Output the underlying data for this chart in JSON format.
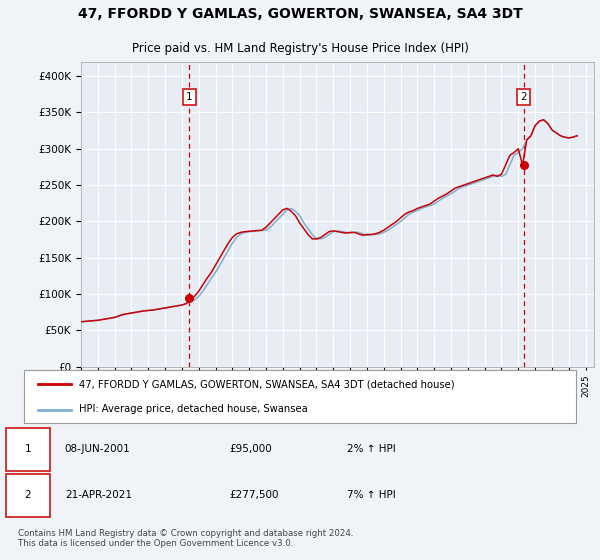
{
  "title": "47, FFORDD Y GAMLAS, GOWERTON, SWANSEA, SA4 3DT",
  "subtitle": "Price paid vs. HM Land Registry's House Price Index (HPI)",
  "yticks": [
    0,
    50000,
    100000,
    150000,
    200000,
    250000,
    300000,
    350000,
    400000
  ],
  "xlim_start": 1995.0,
  "xlim_end": 2025.5,
  "ylim": [
    0,
    420000
  ],
  "background_color": "#f0f4f8",
  "plot_bg_color": "#e8ecf4",
  "grid_color": "#ffffff",
  "sale1_x": 2001.44,
  "sale1_y": 95000,
  "sale1_label": "1",
  "sale2_x": 2021.31,
  "sale2_y": 277500,
  "sale2_label": "2",
  "hpi_color": "#7bafd4",
  "price_color": "#cc0000",
  "dashed_color": "#cc0000",
  "legend_label_price": "47, FFORDD Y GAMLAS, GOWERTON, SWANSEA, SA4 3DT (detached house)",
  "legend_label_hpi": "HPI: Average price, detached house, Swansea",
  "annotation1_date": "08-JUN-2001",
  "annotation1_price": "£95,000",
  "annotation1_hpi": "2% ↑ HPI",
  "annotation2_date": "21-APR-2021",
  "annotation2_price": "£277,500",
  "annotation2_hpi": "7% ↑ HPI",
  "footer": "Contains HM Land Registry data © Crown copyright and database right 2024.\nThis data is licensed under the Open Government Licence v3.0.",
  "hpi_data_x": [
    1995.0,
    1995.25,
    1995.5,
    1995.75,
    1996.0,
    1996.25,
    1996.5,
    1996.75,
    1997.0,
    1997.25,
    1997.5,
    1997.75,
    1998.0,
    1998.25,
    1998.5,
    1998.75,
    1999.0,
    1999.25,
    1999.5,
    1999.75,
    2000.0,
    2000.25,
    2000.5,
    2000.75,
    2001.0,
    2001.25,
    2001.5,
    2001.75,
    2002.0,
    2002.25,
    2002.5,
    2002.75,
    2003.0,
    2003.25,
    2003.5,
    2003.75,
    2004.0,
    2004.25,
    2004.5,
    2004.75,
    2005.0,
    2005.25,
    2005.5,
    2005.75,
    2006.0,
    2006.25,
    2006.5,
    2006.75,
    2007.0,
    2007.25,
    2007.5,
    2007.75,
    2008.0,
    2008.25,
    2008.5,
    2008.75,
    2009.0,
    2009.25,
    2009.5,
    2009.75,
    2010.0,
    2010.25,
    2010.5,
    2010.75,
    2011.0,
    2011.25,
    2011.5,
    2011.75,
    2012.0,
    2012.25,
    2012.5,
    2012.75,
    2013.0,
    2013.25,
    2013.5,
    2013.75,
    2014.0,
    2014.25,
    2014.5,
    2014.75,
    2015.0,
    2015.25,
    2015.5,
    2015.75,
    2016.0,
    2016.25,
    2016.5,
    2016.75,
    2017.0,
    2017.25,
    2017.5,
    2017.75,
    2018.0,
    2018.25,
    2018.5,
    2018.75,
    2019.0,
    2019.25,
    2019.5,
    2019.75,
    2020.0,
    2020.25,
    2020.5,
    2020.75,
    2021.0,
    2021.25,
    2021.5,
    2021.75,
    2022.0,
    2022.25,
    2022.5,
    2022.75,
    2023.0,
    2023.25,
    2023.5,
    2023.75,
    2024.0,
    2024.25,
    2024.5
  ],
  "hpi_data_y": [
    62000,
    62500,
    63000,
    63500,
    64000,
    65000,
    66000,
    67000,
    68000,
    70000,
    72000,
    73000,
    74000,
    75000,
    76000,
    77000,
    77500,
    78000,
    79000,
    80000,
    81000,
    82000,
    83000,
    84000,
    85000,
    87000,
    89000,
    92000,
    97000,
    104000,
    113000,
    122000,
    130000,
    140000,
    150000,
    160000,
    170000,
    178000,
    183000,
    185000,
    186000,
    186500,
    187000,
    187500,
    188000,
    192000,
    198000,
    204000,
    210000,
    216000,
    218000,
    214000,
    208000,
    198000,
    190000,
    182000,
    176000,
    176000,
    178000,
    182000,
    186000,
    187000,
    186000,
    185000,
    184000,
    185000,
    185000,
    183000,
    181000,
    182000,
    182000,
    183000,
    185000,
    188000,
    192000,
    196000,
    200000,
    205000,
    210000,
    213000,
    215000,
    218000,
    220000,
    222000,
    224000,
    228000,
    232000,
    235000,
    238000,
    242000,
    246000,
    248000,
    250000,
    252000,
    254000,
    256000,
    258000,
    260000,
    262000,
    264000,
    262000,
    265000,
    278000,
    291000,
    295000,
    300000,
    312000,
    318000,
    332000,
    338000,
    340000,
    335000,
    326000,
    322000,
    318000,
    316000,
    315000,
    316000,
    318000
  ],
  "price_data_x": [
    1995.0,
    1995.25,
    1995.5,
    1995.75,
    1996.0,
    1996.25,
    1996.5,
    1996.75,
    1997.0,
    1997.25,
    1997.5,
    1997.75,
    1998.0,
    1998.25,
    1998.5,
    1998.75,
    1999.0,
    1999.25,
    1999.5,
    1999.75,
    2000.0,
    2000.25,
    2000.5,
    2000.75,
    2001.0,
    2001.25,
    2001.5,
    2001.75,
    2002.0,
    2002.25,
    2002.5,
    2002.75,
    2003.0,
    2003.25,
    2003.5,
    2003.75,
    2004.0,
    2004.25,
    2004.5,
    2004.75,
    2005.0,
    2005.25,
    2005.5,
    2005.75,
    2006.0,
    2006.25,
    2006.5,
    2006.75,
    2007.0,
    2007.25,
    2007.5,
    2007.75,
    2008.0,
    2008.25,
    2008.5,
    2008.75,
    2009.0,
    2009.25,
    2009.5,
    2009.75,
    2010.0,
    2010.25,
    2010.5,
    2010.75,
    2011.0,
    2011.25,
    2011.5,
    2011.75,
    2012.0,
    2012.25,
    2012.5,
    2012.75,
    2013.0,
    2013.25,
    2013.5,
    2013.75,
    2014.0,
    2014.25,
    2014.5,
    2014.75,
    2015.0,
    2015.25,
    2015.5,
    2015.75,
    2016.0,
    2016.25,
    2016.5,
    2016.75,
    2017.0,
    2017.25,
    2017.5,
    2017.75,
    2018.0,
    2018.25,
    2018.5,
    2018.75,
    2019.0,
    2019.25,
    2019.5,
    2019.75,
    2020.0,
    2020.25,
    2020.5,
    2020.75,
    2021.0,
    2021.25,
    2021.5,
    2021.75,
    2022.0,
    2022.25,
    2022.5,
    2022.75,
    2023.0,
    2023.25,
    2023.5,
    2023.75,
    2024.0,
    2024.25,
    2024.5
  ],
  "price_data_y": [
    62000,
    62500,
    63000,
    63500,
    64000,
    65000,
    66000,
    67000,
    68000,
    70000,
    72000,
    73000,
    74000,
    75000,
    76000,
    77000,
    77500,
    78000,
    79000,
    80000,
    81000,
    82000,
    83000,
    84000,
    85000,
    87000,
    92000,
    97000,
    104000,
    113000,
    122000,
    130000,
    140000,
    150000,
    160000,
    170000,
    178000,
    183000,
    185000,
    186000,
    186500,
    187000,
    187500,
    188000,
    192000,
    198000,
    204000,
    210000,
    216000,
    218000,
    214000,
    208000,
    198000,
    190000,
    182000,
    176000,
    176000,
    178000,
    182000,
    186000,
    187000,
    186000,
    185000,
    184000,
    185000,
    185000,
    183000,
    181000,
    182000,
    182000,
    183000,
    185000,
    188000,
    192000,
    196000,
    200000,
    205000,
    210000,
    213000,
    215000,
    218000,
    220000,
    222000,
    224000,
    228000,
    232000,
    235000,
    238000,
    242000,
    246000,
    248000,
    250000,
    252000,
    254000,
    256000,
    258000,
    260000,
    262000,
    264000,
    262000,
    265000,
    278000,
    291000,
    295000,
    300000,
    277500,
    312000,
    318000,
    332000,
    338000,
    340000,
    335000,
    326000,
    322000,
    318000,
    316000,
    315000,
    316000,
    318000
  ]
}
